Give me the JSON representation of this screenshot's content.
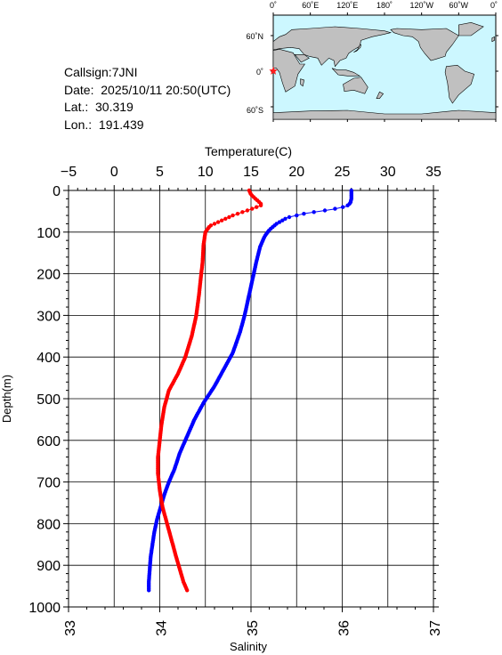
{
  "info": {
    "callsign": "Callsign:7JNI",
    "date": "Date:  2025/10/11 20:50(UTC)",
    "lat": "Lat.:  30.319",
    "lon": "Lon.:  191.439"
  },
  "map": {
    "top_ticks": [
      "0˚",
      "60˚E",
      "120˚E",
      "180˚",
      "120˚W",
      "60˚W",
      "0˚"
    ],
    "lat_ticks": [
      "60˚N",
      "0˚",
      "60˚S"
    ],
    "colors": {
      "ocean": "#ccf7ff",
      "land": "#c0c0c0",
      "marker": "#ff2020"
    },
    "marker_icon": "red-star-icon"
  },
  "chart_data": {
    "type": "line",
    "ylabel": "Depth(m)",
    "ylim": [
      1000,
      0
    ],
    "yticks": [
      "0",
      "100",
      "200",
      "300",
      "400",
      "500",
      "600",
      "700",
      "800",
      "900",
      "1000"
    ],
    "temperature_axis": {
      "label": "Temperature(C)",
      "lim": [
        -5,
        35
      ],
      "ticks": [
        "−5",
        "0",
        "5",
        "10",
        "15",
        "20",
        "25",
        "30",
        "35"
      ]
    },
    "salinity_axis": {
      "label": "Salinity",
      "lim": [
        33,
        37
      ],
      "ticks": [
        "33",
        "34",
        "35",
        "36",
        "37"
      ]
    },
    "grid": true,
    "series": [
      {
        "color": "#0000ff",
        "x": [
          26.0,
          26.0,
          26.0,
          25.9,
          25.5,
          24.0,
          21.0,
          19.0,
          17.8,
          17.0,
          16.5,
          16.0,
          15.6,
          15.2,
          14.8,
          14.3,
          13.8,
          13.0,
          12.0,
          11.0,
          9.8,
          8.8,
          8.0,
          7.2,
          6.6,
          6.0,
          5.5,
          5.1,
          4.7,
          4.4,
          4.2,
          4.0,
          3.9,
          3.8,
          3.8
        ],
        "y": [
          0,
          10,
          20,
          30,
          38,
          45,
          55,
          65,
          80,
          95,
          110,
          135,
          170,
          210,
          250,
          300,
          340,
          390,
          430,
          470,
          510,
          550,
          590,
          630,
          670,
          700,
          730,
          760,
          790,
          820,
          850,
          880,
          910,
          940,
          960
        ]
      },
      {
        "color": "#ff0000",
        "x": [
          34.98,
          35.0,
          35.05,
          35.1,
          35.12,
          35.0,
          34.8,
          34.65,
          34.55,
          34.5,
          34.48,
          34.47,
          34.45,
          34.43,
          34.4,
          34.35,
          34.28,
          34.2,
          34.1,
          34.05,
          34.02,
          34.0,
          33.98,
          33.98,
          34.0,
          34.03,
          34.08,
          34.13,
          34.18,
          34.22,
          34.26,
          34.3
        ],
        "y": [
          0,
          10,
          20,
          30,
          35,
          45,
          60,
          75,
          85,
          100,
          130,
          170,
          210,
          250,
          300,
          350,
          400,
          440,
          480,
          520,
          560,
          600,
          640,
          680,
          720,
          760,
          800,
          840,
          880,
          910,
          940,
          960
        ]
      }
    ]
  }
}
